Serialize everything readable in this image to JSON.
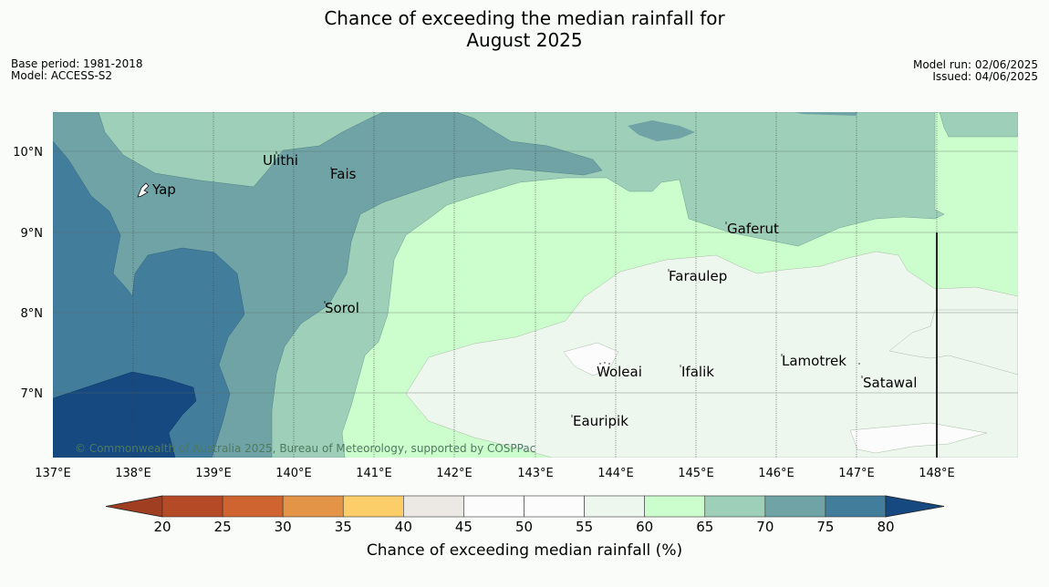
{
  "title_line1": "Chance of exceeding the median rainfall for",
  "title_line2": "August 2025",
  "base_period": "Base period: 1981-2018",
  "model": "Model: ACCESS-S2",
  "model_run": "Model run: 02/06/2025",
  "issued": "Issued: 04/06/2025",
  "copyright": "© Commonwealth of Australia 2025, Bureau of Meteorology, supported by COSPPac",
  "map": {
    "lon_ticks": [
      "137°E",
      "138°E",
      "139°E",
      "140°E",
      "141°E",
      "142°E",
      "143°E",
      "144°E",
      "145°E",
      "146°E",
      "147°E",
      "148°E"
    ],
    "lat_ticks": [
      "10°N",
      "9°N",
      "8°N",
      "7°N"
    ],
    "places": [
      "Ulithi",
      "Fais",
      "Yap",
      "Gaferut",
      "Faraulep",
      "Sorol",
      "Lamotrek",
      "Woleai",
      "Ifalik",
      "Satawal",
      "Eauripik"
    ]
  },
  "legend": {
    "title": "Chance of exceeding median rainfall (%)",
    "ticks": [
      "20",
      "25",
      "30",
      "35",
      "40",
      "45",
      "50",
      "55",
      "60",
      "65",
      "70",
      "75",
      "80"
    ],
    "colors": [
      "#a03e22",
      "#b54a26",
      "#cf6431",
      "#e49447",
      "#fcce6a",
      "#ece9e4",
      "#fbfcfb",
      "#fcfcfc",
      "#eef7ee",
      "#ccfdcc",
      "#9ecfb8",
      "#6fa3a6",
      "#437d9c",
      "#16497f"
    ]
  }
}
